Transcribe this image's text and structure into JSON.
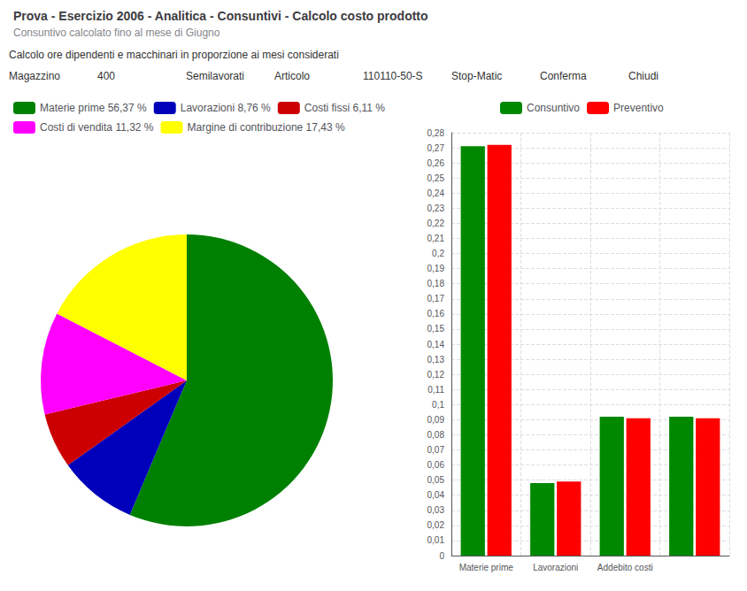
{
  "chart_data": [
    {
      "type": "pie",
      "title": "Prova - Esercizio 2006 - Analitica - Consuntivi - Calcolo costo prodotto",
      "subtitle": "Consuntivo calcolato fino al mese di Giugno",
      "annotations": [
        "Calcolo ore dipendenti e macchinari in proporzione ai mesi considerati",
        "Magazzino",
        "400",
        "Semilavorati",
        "Articolo",
        "110110-50-S",
        "Stop-Matic",
        "Conferma",
        "Chiudi"
      ],
      "categories": [
        "Materie prime 56,37 %",
        "Lavorazioni 8,76 %",
        "Costi fissi 6,11 %",
        "Costi di vendita 11,32 %",
        "Margine di contribuzione 17,43 %"
      ],
      "values": [
        56.37,
        8.76,
        6.11,
        11.32,
        17.43
      ],
      "colors": [
        "#008000",
        "#0000BB",
        "#CC0000",
        "#FF00FF",
        "#FFFF00"
      ],
      "legend": "top"
    },
    {
      "type": "bar",
      "categories": [
        "Materie prime",
        "Lavorazioni",
        "Addebito costi",
        null
      ],
      "series": [
        {
          "name": "Consuntivo",
          "color": "#008800",
          "values": [
            0.271,
            0.048,
            0.092,
            0.092
          ]
        },
        {
          "name": "Preventivo",
          "color": "#FF0000",
          "values": [
            0.272,
            0.049,
            0.091,
            0.091
          ]
        }
      ],
      "ylim": [
        0,
        0.28
      ],
      "yticks": [
        0,
        {
          "value": 0.01,
          "label": "0,01"
        },
        {
          "value": 0.02,
          "label": "0,02"
        },
        {
          "value": 0.03,
          "label": "0,03"
        },
        {
          "value": 0.04,
          "label": "0,04"
        },
        {
          "value": 0.05,
          "label": "0,05"
        },
        {
          "value": 0.06,
          "label": "0,06"
        },
        {
          "value": 0.07,
          "label": "0,07"
        },
        {
          "value": 0.08,
          "label": "0,08"
        },
        {
          "value": 0.09,
          "label": "0,09"
        },
        {
          "value": 0.1,
          "label": "0,1"
        },
        {
          "value": 0.11,
          "label": "0,11"
        },
        {
          "value": 0.12,
          "label": "0,12"
        },
        {
          "value": 0.13,
          "label": "0,13"
        },
        {
          "value": 0.14,
          "label": "0,14"
        },
        {
          "value": 0.15,
          "label": "0,15"
        },
        {
          "value": 0.16,
          "label": "0,16"
        },
        {
          "value": 0.17,
          "label": "0,17"
        },
        {
          "value": 0.18,
          "label": "0,18"
        },
        {
          "value": 0.19,
          "label": "0,19"
        },
        {
          "value": 0.2,
          "label": "0,2"
        },
        {
          "value": 0.21,
          "label": "0,21"
        },
        {
          "value": 0.22,
          "label": "0,22"
        },
        {
          "value": 0.23,
          "label": "0,23"
        },
        {
          "value": 0.24,
          "label": "0,24"
        },
        {
          "value": 0.25,
          "label": "0,25"
        },
        {
          "value": 0.26,
          "label": "0,26"
        },
        {
          "value": 0.27,
          "label": "0,27"
        },
        {
          "value": 0.28,
          "label": "0,28"
        }
      ],
      "grid": true,
      "legend": "top"
    }
  ]
}
